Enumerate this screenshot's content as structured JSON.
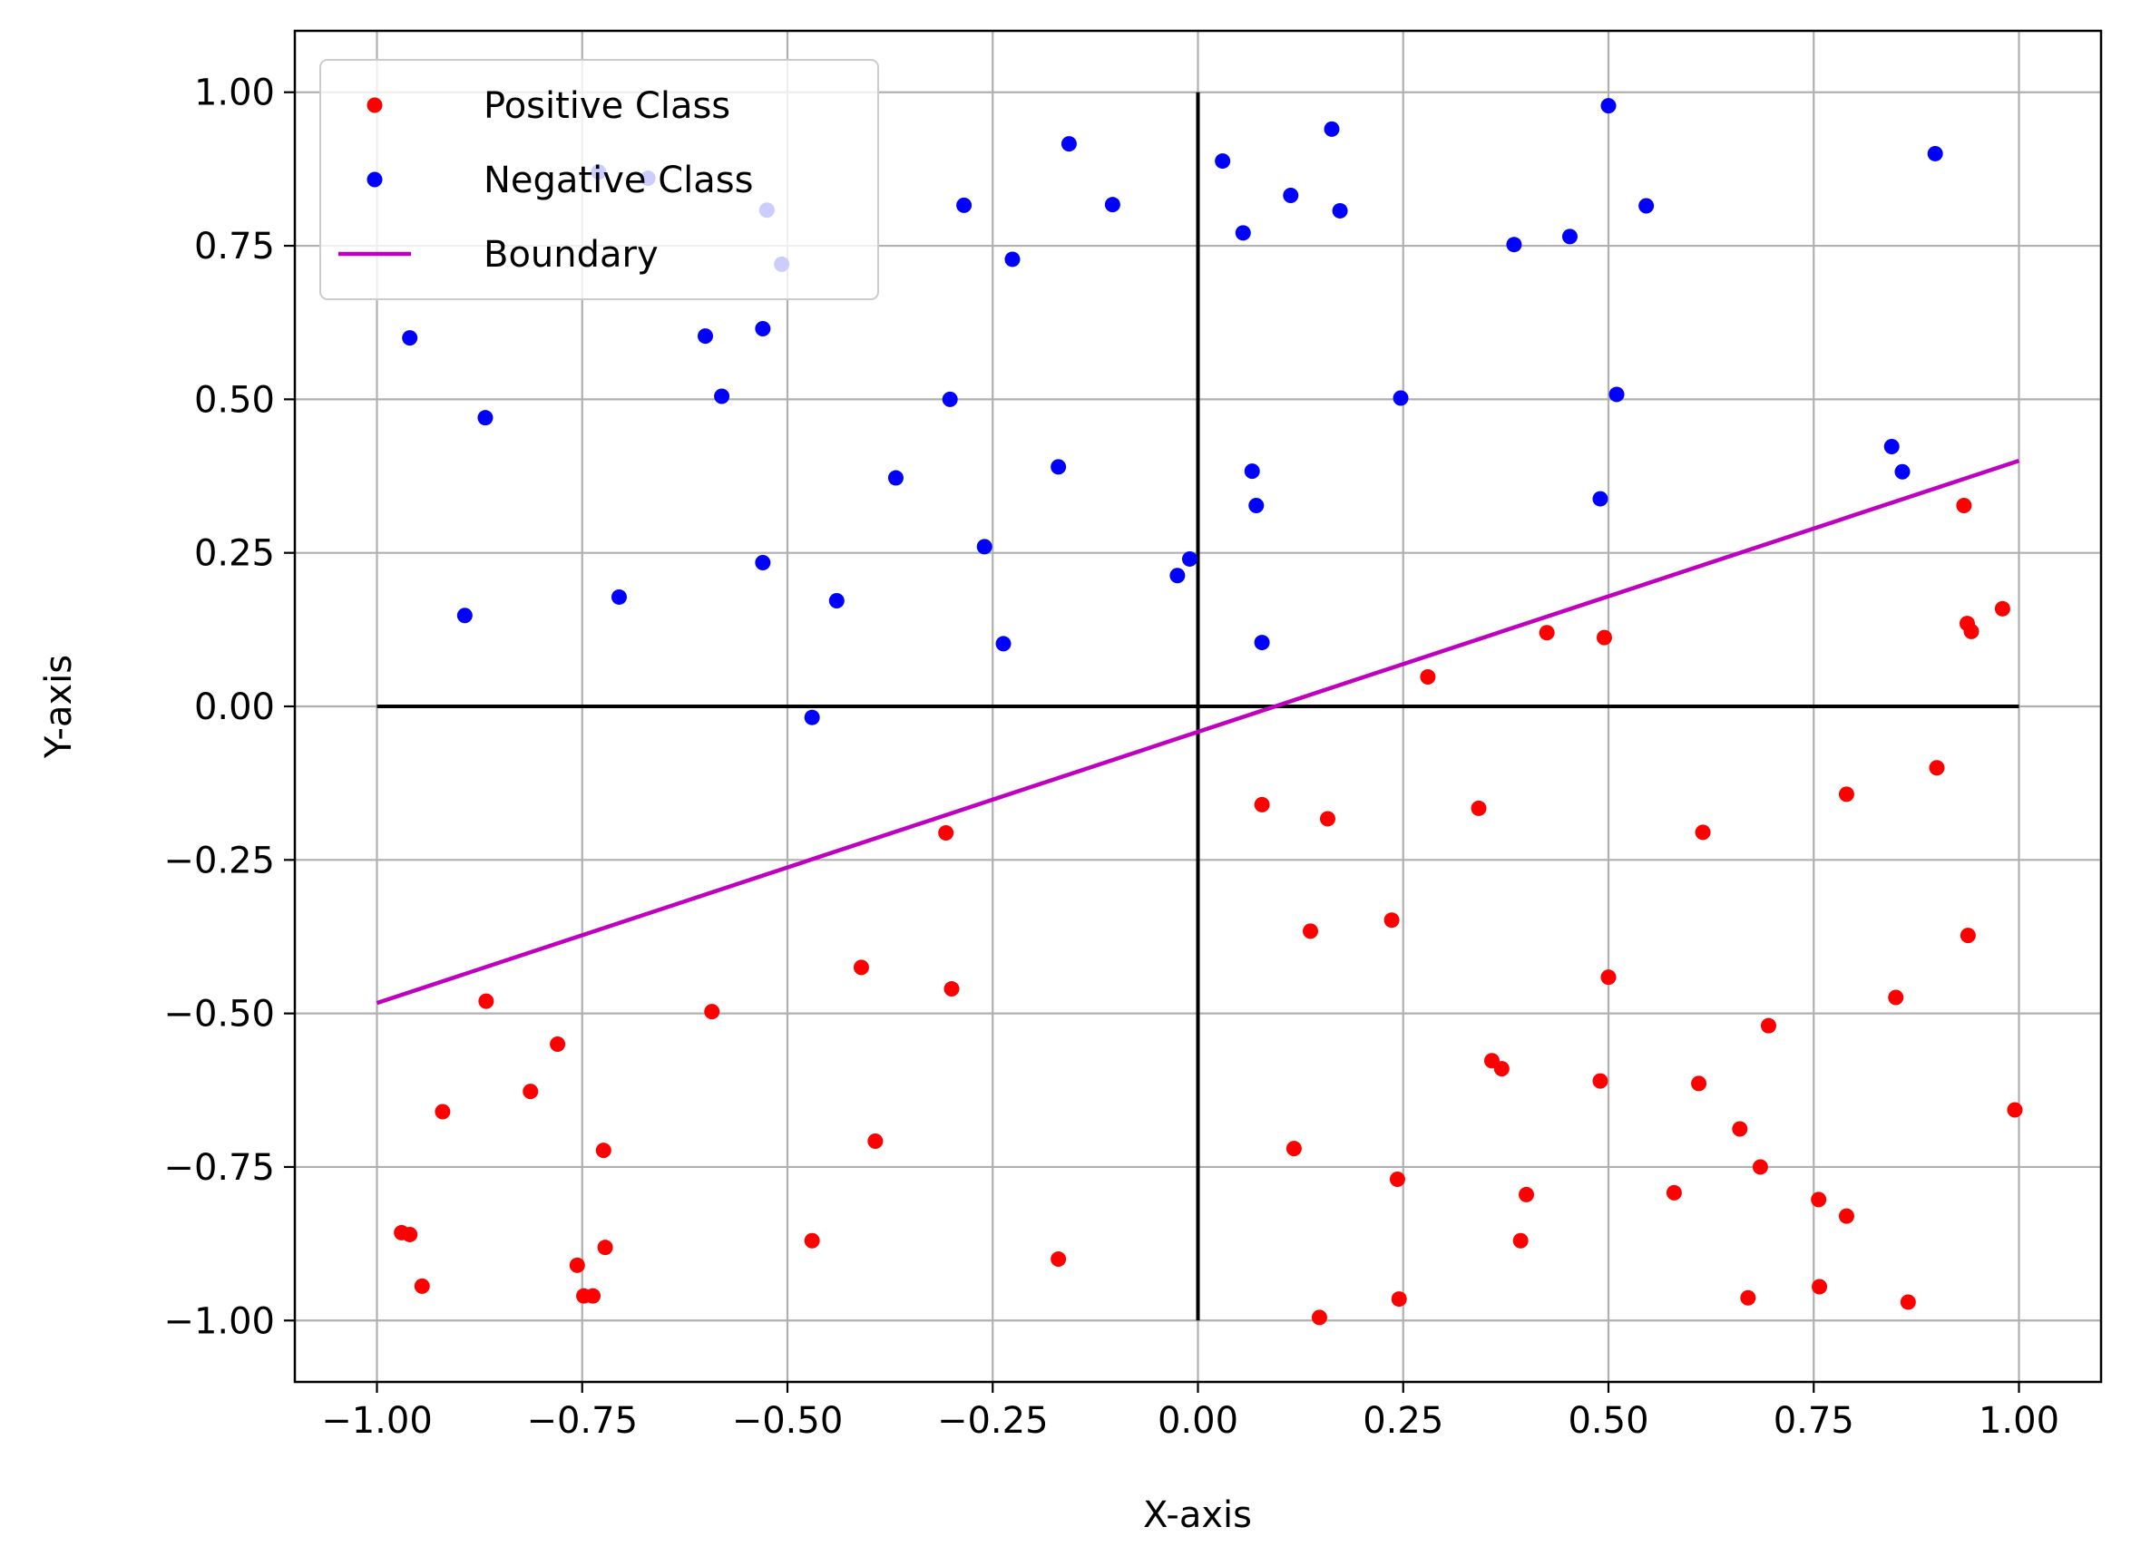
{
  "chart_data": {
    "type": "scatter",
    "xlabel": "X-axis",
    "ylabel": "Y-axis",
    "xlim": [
      -1.1,
      1.1
    ],
    "ylim": [
      -1.1,
      1.1
    ],
    "grid": true,
    "legend_position": "top-left",
    "xticks": [
      -1.0,
      -0.75,
      -0.5,
      -0.25,
      0.0,
      0.25,
      0.5,
      0.75,
      1.0
    ],
    "yticks": [
      -1.0,
      -0.75,
      -0.5,
      -0.25,
      0.0,
      0.25,
      0.5,
      0.75,
      1.0
    ],
    "xtick_labels": [
      "−1.00",
      "−0.75",
      "−0.50",
      "−0.25",
      "0.00",
      "0.25",
      "0.50",
      "0.75",
      "1.00"
    ],
    "ytick_labels": [
      "−1.00",
      "−0.75",
      "−0.50",
      "−0.25",
      "0.00",
      "0.25",
      "0.50",
      "0.75",
      "1.00"
    ],
    "reference_lines": [
      {
        "from": [
          -1.0,
          0.0
        ],
        "to": [
          1.0,
          0.0
        ],
        "color": "#000000"
      },
      {
        "from": [
          0.0,
          -1.0
        ],
        "to": [
          0.0,
          1.0
        ],
        "color": "#000000"
      }
    ],
    "series": [
      {
        "name": "Positive Class",
        "kind": "scatter",
        "color": "#ff0000",
        "points": [
          [
            0.933,
            0.327
          ],
          [
            0.937,
            0.135
          ],
          [
            0.942,
            0.122
          ],
          [
            0.98,
            0.159
          ],
          [
            0.425,
            0.12
          ],
          [
            0.495,
            0.112
          ],
          [
            0.28,
            0.048
          ],
          [
            0.078,
            -0.16
          ],
          [
            0.158,
            -0.183
          ],
          [
            0.342,
            -0.166
          ],
          [
            0.615,
            -0.205
          ],
          [
            0.79,
            -0.143
          ],
          [
            0.9,
            -0.1
          ],
          [
            -0.307,
            -0.206
          ],
          [
            0.137,
            -0.366
          ],
          [
            0.236,
            -0.348
          ],
          [
            0.938,
            -0.373
          ],
          [
            -0.41,
            -0.425
          ],
          [
            -0.3,
            -0.46
          ],
          [
            0.5,
            -0.441
          ],
          [
            0.85,
            -0.474
          ],
          [
            -0.867,
            -0.48
          ],
          [
            -0.592,
            -0.497
          ],
          [
            0.695,
            -0.52
          ],
          [
            -0.78,
            -0.55
          ],
          [
            0.358,
            -0.577
          ],
          [
            0.37,
            -0.59
          ],
          [
            -0.813,
            -0.627
          ],
          [
            0.49,
            -0.61
          ],
          [
            0.61,
            -0.614
          ],
          [
            -0.92,
            -0.66
          ],
          [
            0.995,
            -0.657
          ],
          [
            -0.393,
            -0.708
          ],
          [
            -0.724,
            -0.723
          ],
          [
            0.117,
            -0.72
          ],
          [
            0.66,
            -0.688
          ],
          [
            0.243,
            -0.77
          ],
          [
            0.685,
            -0.75
          ],
          [
            0.4,
            -0.795
          ],
          [
            0.58,
            -0.792
          ],
          [
            0.756,
            -0.803
          ],
          [
            0.79,
            -0.83
          ],
          [
            -0.97,
            -0.857
          ],
          [
            -0.96,
            -0.86
          ],
          [
            -0.47,
            -0.87
          ],
          [
            0.393,
            -0.87
          ],
          [
            -0.722,
            -0.881
          ],
          [
            -0.756,
            -0.91
          ],
          [
            -0.17,
            -0.9
          ],
          [
            -0.945,
            -0.944
          ],
          [
            -0.748,
            -0.96
          ],
          [
            -0.737,
            -0.96
          ],
          [
            0.245,
            -0.965
          ],
          [
            0.67,
            -0.963
          ],
          [
            0.757,
            -0.945
          ],
          [
            0.865,
            -0.97
          ],
          [
            0.148,
            -0.995
          ]
        ]
      },
      {
        "name": "Negative Class",
        "kind": "scatter",
        "color": "#0000ff",
        "points": [
          [
            0.5,
            0.978
          ],
          [
            0.163,
            0.94
          ],
          [
            -0.157,
            0.916
          ],
          [
            0.898,
            0.9
          ],
          [
            0.03,
            0.888
          ],
          [
            -0.73,
            0.87
          ],
          [
            -0.67,
            0.86
          ],
          [
            0.113,
            0.832
          ],
          [
            -0.104,
            0.817
          ],
          [
            -0.285,
            0.816
          ],
          [
            0.546,
            0.815
          ],
          [
            -0.525,
            0.808
          ],
          [
            0.173,
            0.807
          ],
          [
            0.055,
            0.771
          ],
          [
            0.453,
            0.765
          ],
          [
            0.385,
            0.752
          ],
          [
            -0.226,
            0.728
          ],
          [
            -0.507,
            0.72
          ],
          [
            -0.53,
            0.615
          ],
          [
            -0.6,
            0.603
          ],
          [
            -0.96,
            0.6
          ],
          [
            0.51,
            0.508
          ],
          [
            -0.58,
            0.505
          ],
          [
            0.247,
            0.502
          ],
          [
            -0.302,
            0.5
          ],
          [
            -0.868,
            0.47
          ],
          [
            0.845,
            0.423
          ],
          [
            0.858,
            0.382
          ],
          [
            0.066,
            0.383
          ],
          [
            -0.17,
            0.39
          ],
          [
            -0.368,
            0.372
          ],
          [
            0.49,
            0.338
          ],
          [
            0.071,
            0.327
          ],
          [
            -0.26,
            0.26
          ],
          [
            -0.01,
            0.24
          ],
          [
            -0.53,
            0.234
          ],
          [
            -0.025,
            0.213
          ],
          [
            -0.705,
            0.178
          ],
          [
            -0.44,
            0.172
          ],
          [
            -0.893,
            0.148
          ],
          [
            -0.237,
            0.102
          ],
          [
            0.078,
            0.104
          ],
          [
            -0.47,
            -0.018
          ]
        ]
      },
      {
        "name": "Boundary",
        "kind": "line",
        "color": "#bf00bf",
        "points": [
          [
            -1.0,
            -0.483
          ],
          [
            1.0,
            0.4
          ]
        ]
      }
    ]
  }
}
